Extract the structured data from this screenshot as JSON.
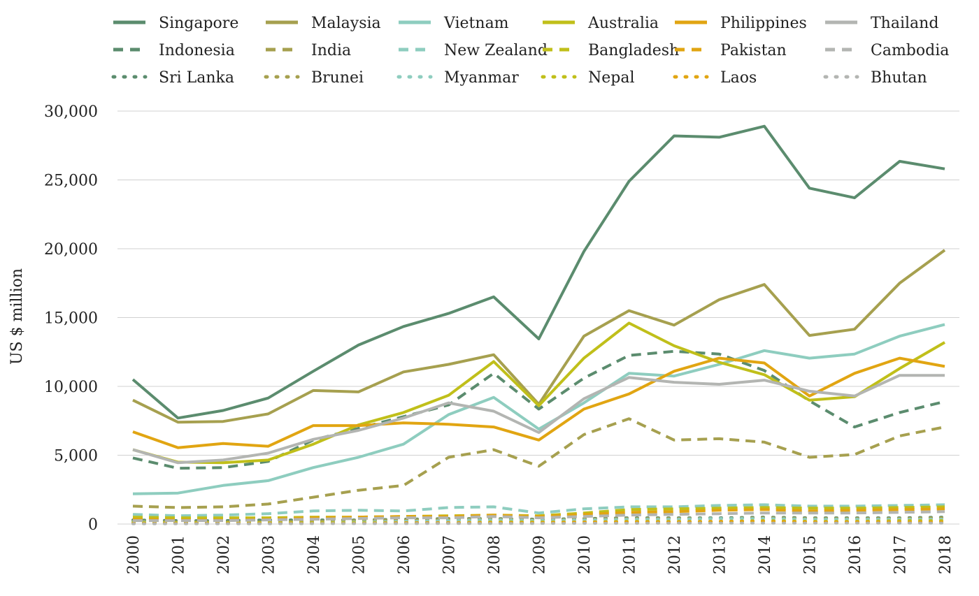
{
  "chart_data": {
    "type": "line",
    "title": "",
    "xlabel": "",
    "ylabel": "US $ million",
    "ylim": [
      0,
      30000
    ],
    "yticks": [
      0,
      5000,
      10000,
      15000,
      20000,
      25000,
      30000
    ],
    "ytick_labels": [
      "0",
      "5,000",
      "10,000",
      "15,000",
      "20,000",
      "25,000",
      "30,000"
    ],
    "grid": "horizontal",
    "legend": "top",
    "x": [
      "2000",
      "2001",
      "2002",
      "2003",
      "2004",
      "2005",
      "2006",
      "2007",
      "2008",
      "2009",
      "2010",
      "2011",
      "2012",
      "2013",
      "2014",
      "2015",
      "2016",
      "2017",
      "2018"
    ],
    "series": [
      {
        "name": "Singapore",
        "color": "#5b8c6e",
        "style": "solid",
        "values": [
          10500,
          7700,
          8250,
          9150,
          11100,
          13000,
          14350,
          15300,
          16500,
          13450,
          19800,
          24900,
          28200,
          28100,
          28900,
          24400,
          23700,
          26350,
          25800
        ]
      },
      {
        "name": "Malaysia",
        "color": "#a6a04f",
        "style": "solid",
        "values": [
          9000,
          7400,
          7450,
          8000,
          9700,
          9600,
          11050,
          11600,
          12300,
          8700,
          13650,
          15500,
          14450,
          16300,
          17400,
          13700,
          14150,
          17500,
          19900
        ]
      },
      {
        "name": "Vietnam",
        "color": "#8ecdbf",
        "style": "solid",
        "values": [
          2200,
          2250,
          2800,
          3150,
          4100,
          4850,
          5800,
          7950,
          9200,
          6900,
          8800,
          10950,
          10750,
          11600,
          12600,
          12050,
          12350,
          13650,
          14500
        ]
      },
      {
        "name": "Australia",
        "color": "#c0bf1a",
        "style": "solid",
        "values": [
          5400,
          4500,
          4450,
          4650,
          5800,
          7200,
          8100,
          9350,
          11800,
          8600,
          12050,
          14600,
          12950,
          11750,
          10850,
          9000,
          9250,
          11300,
          13200
        ]
      },
      {
        "name": "Philippines",
        "color": "#e1a512",
        "style": "solid",
        "values": [
          6700,
          5550,
          5850,
          5650,
          7150,
          7150,
          7350,
          7250,
          7050,
          6100,
          8350,
          9450,
          11100,
          12050,
          11700,
          9300,
          10950,
          12050,
          11450
        ]
      },
      {
        "name": "Thailand",
        "color": "#b3b5b2",
        "style": "solid",
        "values": [
          5400,
          4450,
          4650,
          5150,
          6150,
          6800,
          7700,
          8800,
          8200,
          6650,
          9100,
          10650,
          10300,
          10150,
          10450,
          9650,
          9300,
          10800,
          10800
        ]
      },
      {
        "name": "Indonesia",
        "color": "#5b8c6e",
        "style": "dash",
        "values": [
          4800,
          4050,
          4100,
          4550,
          6100,
          6950,
          7800,
          8650,
          10950,
          8350,
          10600,
          12250,
          12550,
          12350,
          11150,
          8950,
          7050,
          8100,
          8900
        ]
      },
      {
        "name": "India",
        "color": "#a6a04f",
        "style": "dash",
        "values": [
          1300,
          1200,
          1250,
          1450,
          1950,
          2450,
          2800,
          4850,
          5400,
          4200,
          6500,
          7650,
          6100,
          6200,
          5950,
          4850,
          5050,
          6400,
          7050
        ]
      },
      {
        "name": "New Zealand",
        "color": "#8ecdbf",
        "style": "dash",
        "values": [
          700,
          600,
          650,
          750,
          950,
          1000,
          950,
          1200,
          1250,
          800,
          1100,
          1250,
          1250,
          1350,
          1400,
          1300,
          1300,
          1350,
          1400
        ]
      },
      {
        "name": "Bangladesh",
        "color": "#c0bf1a",
        "style": "dash",
        "values": [
          500,
          450,
          450,
          450,
          500,
          500,
          550,
          600,
          650,
          600,
          800,
          1050,
          1100,
          1150,
          1200,
          1150,
          1150,
          1200,
          1250
        ]
      },
      {
        "name": "Pakistan",
        "color": "#e1a512",
        "style": "dash",
        "values": [
          350,
          300,
          300,
          350,
          450,
          500,
          550,
          550,
          650,
          550,
          700,
          850,
          900,
          1000,
          1050,
          950,
          1000,
          1050,
          1100
        ]
      },
      {
        "name": "Cambodia",
        "color": "#b3b5b2",
        "style": "dash",
        "values": [
          250,
          250,
          250,
          300,
          350,
          400,
          450,
          450,
          550,
          450,
          550,
          650,
          700,
          750,
          800,
          800,
          800,
          850,
          900
        ]
      },
      {
        "name": "Sri Lanka",
        "color": "#5b8c6e",
        "style": "dot",
        "values": [
          300,
          250,
          250,
          300,
          300,
          300,
          350,
          400,
          400,
          350,
          400,
          450,
          450,
          450,
          500,
          450,
          450,
          450,
          500
        ]
      },
      {
        "name": "Brunei",
        "color": "#a6a04f",
        "style": "dot",
        "values": [
          200,
          150,
          150,
          150,
          200,
          250,
          300,
          350,
          350,
          300,
          350,
          400,
          400,
          400,
          450,
          400,
          400,
          400,
          450
        ]
      },
      {
        "name": "Myanmar",
        "color": "#8ecdbf",
        "style": "dot",
        "values": [
          150,
          100,
          100,
          100,
          100,
          150,
          200,
          250,
          300,
          250,
          300,
          350,
          350,
          400,
          400,
          350,
          350,
          350,
          350
        ]
      },
      {
        "name": "Nepal",
        "color": "#c0bf1a",
        "style": "dot",
        "values": [
          100,
          100,
          100,
          100,
          100,
          100,
          100,
          100,
          150,
          150,
          150,
          200,
          200,
          200,
          250,
          200,
          200,
          250,
          250
        ]
      },
      {
        "name": "Laos",
        "color": "#e1a512",
        "style": "dot",
        "values": [
          50,
          50,
          50,
          50,
          50,
          50,
          100,
          100,
          100,
          100,
          150,
          150,
          150,
          200,
          200,
          150,
          150,
          150,
          150
        ]
      },
      {
        "name": "Bhutan",
        "color": "#b3b5b2",
        "style": "dot",
        "values": [
          20,
          20,
          20,
          20,
          30,
          30,
          30,
          40,
          40,
          40,
          50,
          50,
          60,
          60,
          60,
          60,
          60,
          60,
          60
        ]
      }
    ]
  }
}
